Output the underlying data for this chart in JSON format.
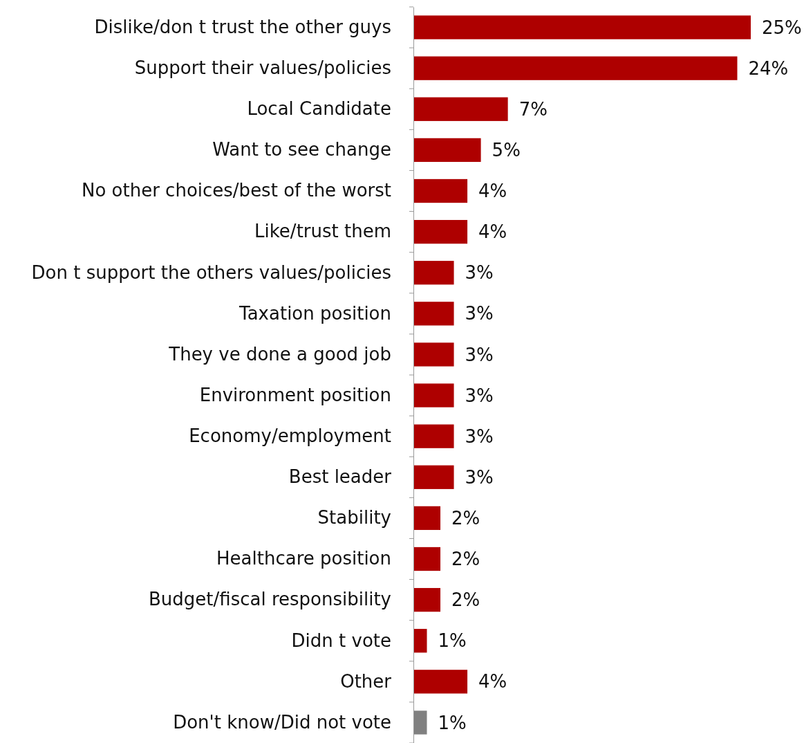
{
  "chart_data": {
    "type": "bar",
    "orientation": "horizontal",
    "data_labels": true,
    "categories": [
      "Dislike/don t trust the other guys",
      "Support their values/policies",
      "Local Candidate",
      "Want to see change",
      "No other choices/best of the worst",
      "Like/trust them",
      "Don t support the others  values/policies",
      "Taxation position",
      "They ve done a good job",
      "Environment position",
      "Economy/employment",
      "Best leader",
      "Stability",
      "Healthcare position",
      "Budget/fiscal responsibility",
      "Didn t vote",
      "Other",
      "Don't know/Did not vote"
    ],
    "values": [
      25,
      24,
      7,
      5,
      4,
      4,
      3,
      3,
      3,
      3,
      3,
      3,
      2,
      2,
      2,
      1,
      4,
      1
    ],
    "colors": [
      "#ae0000",
      "#ae0000",
      "#ae0000",
      "#ae0000",
      "#ae0000",
      "#ae0000",
      "#ae0000",
      "#ae0000",
      "#ae0000",
      "#ae0000",
      "#ae0000",
      "#ae0000",
      "#ae0000",
      "#ae0000",
      "#ae0000",
      "#ae0000",
      "#ae0000",
      "#808080"
    ],
    "value_labels": [
      "25%",
      "24%",
      "7%",
      "5%",
      "4%",
      "4%",
      "3%",
      "3%",
      "3%",
      "3%",
      "3%",
      "3%",
      "2%",
      "2%",
      "2%",
      "1%",
      "4%",
      "1%"
    ]
  }
}
